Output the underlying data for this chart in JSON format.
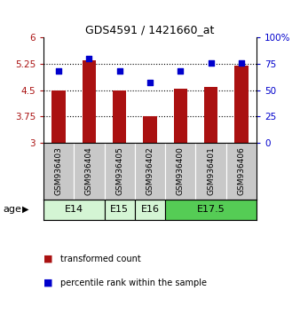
{
  "title": "GDS4591 / 1421660_at",
  "samples": [
    "GSM936403",
    "GSM936404",
    "GSM936405",
    "GSM936402",
    "GSM936400",
    "GSM936401",
    "GSM936406"
  ],
  "bar_values": [
    4.5,
    5.35,
    4.5,
    3.75,
    4.55,
    4.6,
    5.2
  ],
  "dot_values": [
    68,
    80,
    68,
    57,
    68,
    76,
    76
  ],
  "bar_color": "#aa1111",
  "dot_color": "#0000cc",
  "ylim_left": [
    3,
    6
  ],
  "ylim_right": [
    0,
    100
  ],
  "yticks_left": [
    3,
    3.75,
    4.5,
    5.25,
    6
  ],
  "yticks_right": [
    0,
    25,
    50,
    75,
    100
  ],
  "ytick_labels_left": [
    "3",
    "3.75",
    "4.5",
    "5.25",
    "6"
  ],
  "ytick_labels_right": [
    "0",
    "25",
    "50",
    "75",
    "100%"
  ],
  "age_groups": [
    {
      "label": "E14",
      "start": 0,
      "end": 2,
      "color": "#d4f5d4"
    },
    {
      "label": "E15",
      "start": 2,
      "end": 3,
      "color": "#d4f5d4"
    },
    {
      "label": "E16",
      "start": 3,
      "end": 4,
      "color": "#d4f5d4"
    },
    {
      "label": "E17.5",
      "start": 4,
      "end": 7,
      "color": "#55cc55"
    }
  ],
  "age_label": "age",
  "legend_bar_label": "transformed count",
  "legend_dot_label": "percentile rank within the sample",
  "label_area_color": "#c8c8c8",
  "bar_bottom": 3.0,
  "grid_lines": [
    3.75,
    4.5,
    5.25
  ],
  "bar_width": 0.45
}
